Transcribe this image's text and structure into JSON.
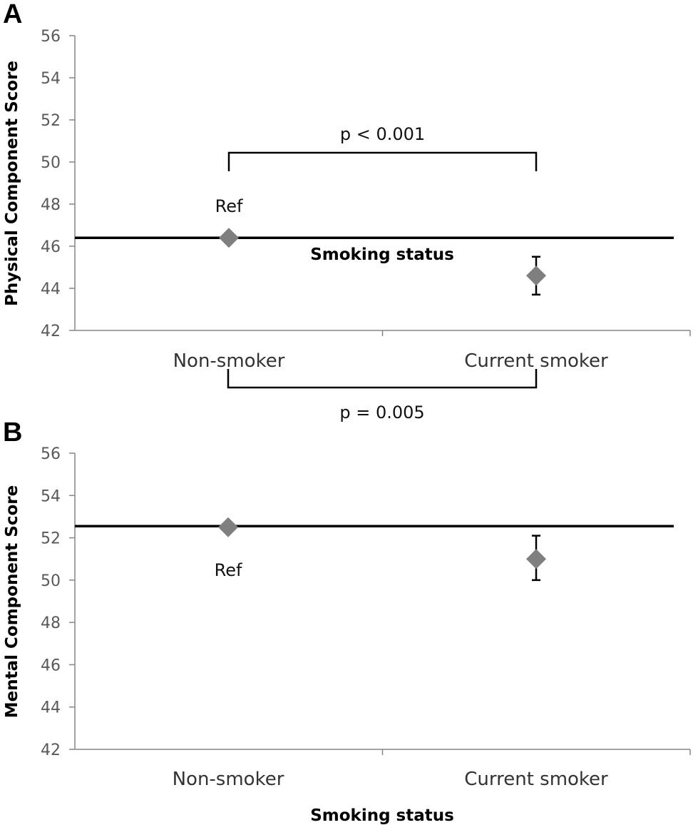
{
  "chart_data": [
    {
      "type": "scatter",
      "panel": "A",
      "xlabel": "Smoking status",
      "ylabel": "Physical Component Score",
      "categories": [
        "Non-smoker",
        "Current smoker"
      ],
      "ylim": [
        42,
        56
      ],
      "yticks": [
        "42",
        "44",
        "46",
        "48",
        "50",
        "52",
        "54",
        "56"
      ],
      "series": [
        {
          "values": [
            46.4,
            44.6
          ],
          "error_low": [
            46.4,
            43.7
          ],
          "error_high": [
            46.4,
            45.5
          ]
        }
      ],
      "reference_line": 46.4,
      "annotations": {
        "ref_label": "Ref",
        "p_label": "p < 0.001"
      },
      "marker_color": "#7f7f7f",
      "grid": false
    },
    {
      "type": "scatter",
      "panel": "B",
      "xlabel": "Smoking status",
      "ylabel": "Mental Component Score",
      "categories": [
        "Non-smoker",
        "Current smoker"
      ],
      "ylim": [
        42,
        56
      ],
      "yticks": [
        "42",
        "44",
        "46",
        "48",
        "50",
        "52",
        "54",
        "56"
      ],
      "series": [
        {
          "values": [
            52.5,
            51.0
          ],
          "error_low": [
            52.5,
            50.0
          ],
          "error_high": [
            52.5,
            52.1
          ]
        }
      ],
      "reference_line": 52.55,
      "annotations": {
        "ref_label": "Ref",
        "p_label": "p = 0.005"
      },
      "marker_color": "#7f7f7f",
      "grid": false
    }
  ]
}
